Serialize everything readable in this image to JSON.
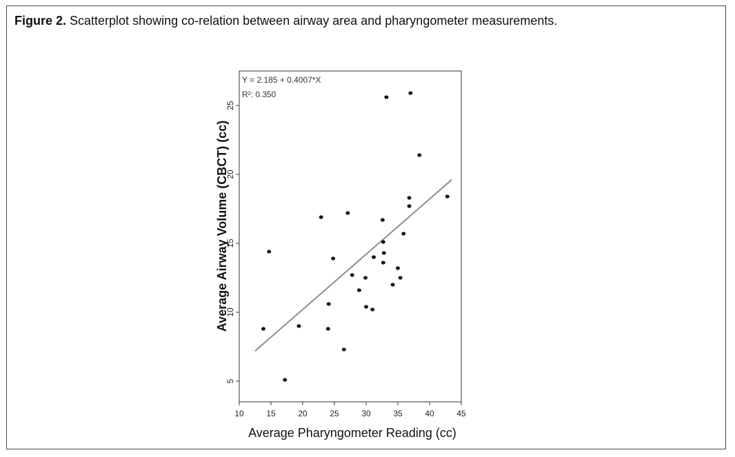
{
  "caption": {
    "label": "Figure 2.",
    "text": " Scatterplot showing co-relation between airway area and pharyngometer measurements."
  },
  "chart_data": {
    "type": "scatter",
    "xlabel": "Average Pharyngometer Reading (cc)",
    "ylabel": "Average Airway Volume (CBCT) (cc)",
    "xlim": [
      10,
      45
    ],
    "ylim": [
      3.5,
      27.5
    ],
    "x_ticks": [
      "10",
      "15",
      "20",
      "25",
      "30",
      "35",
      "40",
      "45"
    ],
    "y_ticks": [
      "5",
      "10",
      "15",
      "20",
      "25"
    ],
    "grid": false,
    "annotations": [
      "Y = 2.185 + 0.4007*X",
      "R²: 0.350"
    ],
    "regression": {
      "intercept": 2.185,
      "slope": 0.4007,
      "x_range": [
        12.5,
        43.5
      ]
    },
    "points": [
      {
        "x": 13.8,
        "y": 8.8
      },
      {
        "x": 14.7,
        "y": 14.4
      },
      {
        "x": 17.2,
        "y": 5.1
      },
      {
        "x": 19.4,
        "y": 9.0
      },
      {
        "x": 22.9,
        "y": 16.9
      },
      {
        "x": 24.0,
        "y": 8.8
      },
      {
        "x": 24.1,
        "y": 10.6
      },
      {
        "x": 24.8,
        "y": 13.9
      },
      {
        "x": 26.5,
        "y": 7.3
      },
      {
        "x": 27.1,
        "y": 17.2
      },
      {
        "x": 27.8,
        "y": 12.7
      },
      {
        "x": 28.9,
        "y": 11.6
      },
      {
        "x": 29.9,
        "y": 12.5
      },
      {
        "x": 30.0,
        "y": 10.4
      },
      {
        "x": 31.0,
        "y": 10.2
      },
      {
        "x": 31.2,
        "y": 14.0
      },
      {
        "x": 32.6,
        "y": 16.7
      },
      {
        "x": 32.7,
        "y": 15.1
      },
      {
        "x": 32.7,
        "y": 13.6
      },
      {
        "x": 32.8,
        "y": 14.3
      },
      {
        "x": 33.2,
        "y": 25.6
      },
      {
        "x": 34.2,
        "y": 12.0
      },
      {
        "x": 35.0,
        "y": 13.2
      },
      {
        "x": 35.4,
        "y": 12.5
      },
      {
        "x": 35.9,
        "y": 15.7
      },
      {
        "x": 36.8,
        "y": 18.3
      },
      {
        "x": 36.8,
        "y": 17.7
      },
      {
        "x": 37.0,
        "y": 25.9
      },
      {
        "x": 38.4,
        "y": 21.4
      },
      {
        "x": 42.8,
        "y": 18.4
      }
    ],
    "colors": {
      "points": "#111111",
      "line": "#8c8c8c",
      "axis": "#333333"
    }
  }
}
